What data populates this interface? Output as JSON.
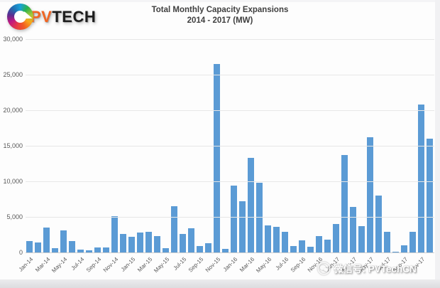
{
  "logo": {
    "brand_pv": "PV",
    "brand_tech": "TECH",
    "icon": "pvtech-swirl-icon"
  },
  "title": {
    "line1": "Total Monthly Capacity Expansions",
    "line2": "2014 - 2017 (MW)"
  },
  "watermark": {
    "icon": "wechat-icon",
    "text": "微信号: PVTechCN"
  },
  "chart_data": {
    "type": "bar",
    "title": "Total Monthly Capacity Expansions 2014 - 2017 (MW)",
    "xlabel": "",
    "ylabel": "",
    "ylim": [
      0,
      30000
    ],
    "ytick_interval": 5000,
    "ytick_labels": [
      "0",
      "5,000",
      "10,000",
      "15,000",
      "20,000",
      "25,000",
      "30,000"
    ],
    "grid": true,
    "legend": "none",
    "bar_color": "#5b9bd5",
    "x_label_every": 2,
    "categories": [
      "Jan-14",
      "Feb-14",
      "Mar-14",
      "Apr-14",
      "May-14",
      "Jun-14",
      "Jul-14",
      "Aug-14",
      "Sep-14",
      "Oct-14",
      "Nov-14",
      "Dec-14",
      "Jan-15",
      "Feb-15",
      "Mar-15",
      "Apr-15",
      "May-15",
      "Jun-15",
      "Jul-15",
      "Aug-15",
      "Sep-15",
      "Oct-15",
      "Nov-15",
      "Dec-15",
      "Jan-16",
      "Feb-16",
      "Mar-16",
      "Apr-16",
      "May-16",
      "Jun-16",
      "Jul-16",
      "Aug-16",
      "Sep-16",
      "Oct-16",
      "Nov-16",
      "Dec-16",
      "Jan-17",
      "Feb-17",
      "Mar-17",
      "Apr-17",
      "May-17",
      "Jun-17",
      "Jul-17",
      "Aug-17",
      "Sep-17",
      "Oct-17",
      "Nov-17",
      "Dec-17"
    ],
    "values": [
      1600,
      1400,
      3500,
      600,
      3100,
      1600,
      400,
      300,
      700,
      700,
      5100,
      2600,
      2200,
      2800,
      2900,
      2300,
      600,
      6500,
      2600,
      3400,
      900,
      1300,
      26500,
      500,
      9400,
      7200,
      13300,
      9800,
      3800,
      3600,
      2900,
      900,
      1700,
      800,
      2300,
      1800,
      4000,
      13700,
      6400,
      3700,
      16200,
      8000,
      2900,
      100,
      1000,
      2900,
      20800,
      16000
    ]
  }
}
